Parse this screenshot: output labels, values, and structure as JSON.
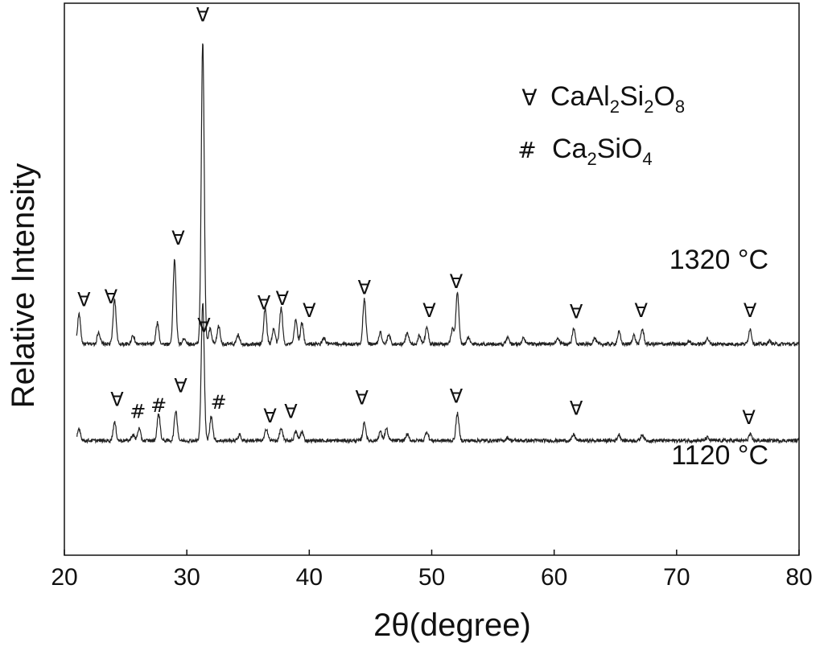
{
  "chart_data": {
    "type": "line",
    "xlabel": "2θ(degree)",
    "ylabel": "Relative Intensity",
    "xlim": [
      20,
      80
    ],
    "xticks": [
      20,
      30,
      40,
      50,
      60,
      70,
      80
    ],
    "y_axis_ticks": "none",
    "grid": false,
    "series": [
      {
        "name": "1320 °C",
        "baseline": 3.2,
        "peaks": [
          [
            21.2,
            1.0
          ],
          [
            22.8,
            0.4
          ],
          [
            24.1,
            1.5
          ],
          [
            25.6,
            0.3
          ],
          [
            27.6,
            0.7
          ],
          [
            29.0,
            2.8
          ],
          [
            29.8,
            0.2
          ],
          [
            31.3,
            10.0
          ],
          [
            31.9,
            0.5
          ],
          [
            32.6,
            0.6
          ],
          [
            34.2,
            0.3
          ],
          [
            36.4,
            1.2
          ],
          [
            37.1,
            0.5
          ],
          [
            37.7,
            1.2
          ],
          [
            38.9,
            0.8
          ],
          [
            39.4,
            0.7
          ],
          [
            41.2,
            0.2
          ],
          [
            44.5,
            1.5
          ],
          [
            45.8,
            0.4
          ],
          [
            46.5,
            0.3
          ],
          [
            48.0,
            0.4
          ],
          [
            49.0,
            0.3
          ],
          [
            49.6,
            0.6
          ],
          [
            51.7,
            0.5
          ],
          [
            52.1,
            1.7
          ],
          [
            53.0,
            0.2
          ],
          [
            56.2,
            0.2
          ],
          [
            57.5,
            0.2
          ],
          [
            60.3,
            0.2
          ],
          [
            61.6,
            0.5
          ],
          [
            63.3,
            0.2
          ],
          [
            65.3,
            0.4
          ],
          [
            66.5,
            0.3
          ],
          [
            67.2,
            0.5
          ],
          [
            71.0,
            0.1
          ],
          [
            72.5,
            0.2
          ],
          [
            76.0,
            0.5
          ],
          [
            77.6,
            0.1
          ]
        ]
      },
      {
        "name": "1120 °C",
        "baseline": 0.0,
        "peaks": [
          [
            21.2,
            0.4
          ],
          [
            24.1,
            0.6
          ],
          [
            25.6,
            0.2
          ],
          [
            26.1,
            0.4
          ],
          [
            27.7,
            0.9
          ],
          [
            29.1,
            1.0
          ],
          [
            31.3,
            4.6
          ],
          [
            32.0,
            0.8
          ],
          [
            34.3,
            0.2
          ],
          [
            36.5,
            0.4
          ],
          [
            37.7,
            0.4
          ],
          [
            38.9,
            0.3
          ],
          [
            39.4,
            0.3
          ],
          [
            44.5,
            0.6
          ],
          [
            45.8,
            0.3
          ],
          [
            46.3,
            0.4
          ],
          [
            48.0,
            0.2
          ],
          [
            49.6,
            0.3
          ],
          [
            52.1,
            0.9
          ],
          [
            56.2,
            0.1
          ],
          [
            61.6,
            0.2
          ],
          [
            65.3,
            0.2
          ],
          [
            67.2,
            0.2
          ],
          [
            72.5,
            0.1
          ],
          [
            76.0,
            0.2
          ]
        ]
      }
    ],
    "annotations": {
      "CaAl2Si2O8_marker": "∀",
      "Ca2SiO4_marker": "#",
      "top_markers": [
        {
          "symbol": "∀",
          "x": 21.6,
          "y": 4.45
        },
        {
          "symbol": "∀",
          "x": 23.8,
          "y": 4.55
        },
        {
          "symbol": "∀",
          "x": 29.3,
          "y": 6.5
        },
        {
          "symbol": "∀",
          "x": 31.3,
          "y": 13.9
        },
        {
          "symbol": "∀",
          "x": 36.3,
          "y": 4.35
        },
        {
          "symbol": "∀",
          "x": 37.8,
          "y": 4.5
        },
        {
          "symbol": "∀",
          "x": 40.0,
          "y": 4.1
        },
        {
          "symbol": "∀",
          "x": 44.5,
          "y": 4.85
        },
        {
          "symbol": "∀",
          "x": 49.8,
          "y": 4.1
        },
        {
          "symbol": "∀",
          "x": 52.0,
          "y": 5.05
        },
        {
          "symbol": "∀",
          "x": 61.8,
          "y": 4.05
        },
        {
          "symbol": "∀",
          "x": 67.1,
          "y": 4.1
        },
        {
          "symbol": "∀",
          "x": 76.0,
          "y": 4.1
        }
      ],
      "bottom_markers": [
        {
          "symbol": "∀",
          "x": 24.3,
          "y": 1.15
        },
        {
          "symbol": "#",
          "x": 26.0,
          "y": 0.75
        },
        {
          "symbol": "#",
          "x": 27.7,
          "y": 0.95
        },
        {
          "symbol": "∀",
          "x": 29.5,
          "y": 1.6
        },
        {
          "symbol": "∀",
          "x": 31.4,
          "y": 3.6
        },
        {
          "symbol": "#",
          "x": 32.6,
          "y": 1.05
        },
        {
          "symbol": "∀",
          "x": 36.8,
          "y": 0.6
        },
        {
          "symbol": "∀",
          "x": 38.5,
          "y": 0.75
        },
        {
          "symbol": "∀",
          "x": 44.3,
          "y": 1.2
        },
        {
          "symbol": "∀",
          "x": 52.0,
          "y": 1.25
        },
        {
          "symbol": "∀",
          "x": 61.8,
          "y": 0.85
        },
        {
          "symbol": "∀",
          "x": 75.9,
          "y": 0.55
        }
      ],
      "temperature_labels": [
        "1320 °C",
        "1120 °C"
      ]
    },
    "legend": {
      "placement": "top-right",
      "entries": [
        {
          "symbol": "∀",
          "formula": {
            "p1": "CaAl",
            "s1": "2",
            "p2": "Si",
            "s2": "2",
            "p3": "O",
            "s3": "8"
          }
        },
        {
          "symbol": "#",
          "formula": {
            "p1": "Ca",
            "s1": "2",
            "p2": "SiO",
            "s2": "4"
          }
        }
      ]
    }
  }
}
